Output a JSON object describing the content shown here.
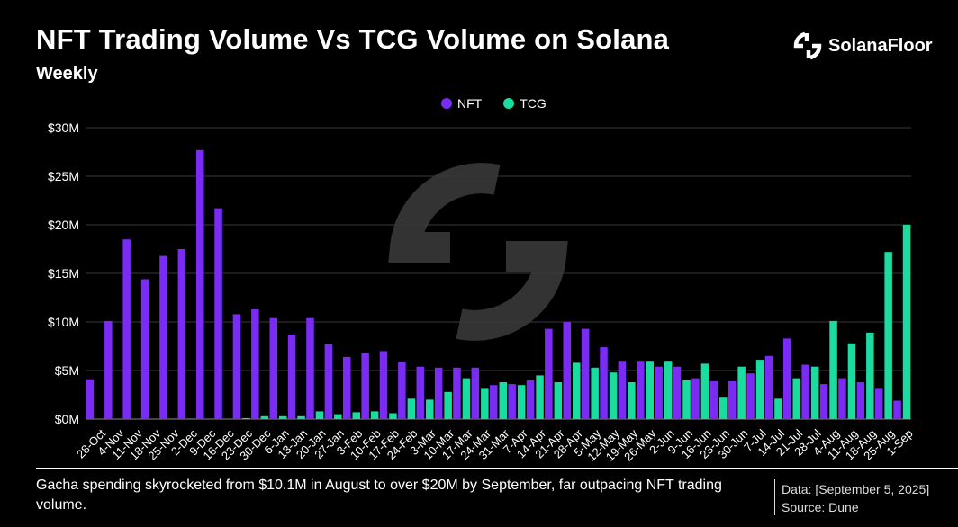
{
  "header": {
    "title": "NFT Trading Volume Vs TCG Volume on Solana",
    "subtitle": "Weekly"
  },
  "brand": {
    "name": "SolanaFloor",
    "icon": "solanafloor-logo-icon"
  },
  "colors": {
    "nft": "#7A2CF5",
    "tcg": "#1ADBA0",
    "background": "#000000",
    "grid": "#3A3A3A",
    "text": "#FFFFFF"
  },
  "chart_data": {
    "type": "bar",
    "title": "NFT Trading Volume Vs TCG Volume on Solana",
    "subtitle": "Weekly",
    "categories": [
      "28-Oct",
      "4-Nov",
      "11-Nov",
      "18-Nov",
      "25-Nov",
      "2-Dec",
      "9-Dec",
      "16-Dec",
      "23-Dec",
      "30-Dec",
      "6-Jan",
      "13-Jan",
      "20-Jan",
      "27-Jan",
      "3-Feb",
      "10-Feb",
      "17-Feb",
      "24-Feb",
      "3-Mar",
      "10-Mar",
      "17-Mar",
      "24-Mar",
      "31-Mar",
      "7-Apr",
      "14-Apr",
      "21-Apr",
      "28-Apr",
      "5-May",
      "12-May",
      "19-May",
      "26-May",
      "2-Jun",
      "9-Jun",
      "16-Jun",
      "23-Jun",
      "30-Jun",
      "7-Jul",
      "14-Jul",
      "21-Jul",
      "28-Jul",
      "4-Aug",
      "11-Aug",
      "18-Aug",
      "25-Aug",
      "1-Sep"
    ],
    "series": [
      {
        "name": "NFT",
        "color": "#7A2CF5",
        "values": [
          4.1,
          10.1,
          18.5,
          14.4,
          16.8,
          17.5,
          27.7,
          21.7,
          10.8,
          11.3,
          10.4,
          8.7,
          10.4,
          7.7,
          6.4,
          6.8,
          7.0,
          5.9,
          5.4,
          5.3,
          5.3,
          5.3,
          3.5,
          3.6,
          4.0,
          9.3,
          10.0,
          9.3,
          7.4,
          6.0,
          6.0,
          5.4,
          5.4,
          4.2,
          3.9,
          3.9,
          4.7,
          6.5,
          8.3,
          5.6,
          3.6,
          4.2,
          3.8,
          3.2,
          1.9
        ]
      },
      {
        "name": "TCG",
        "color": "#1ADBA0",
        "values": [
          0,
          0,
          0,
          0,
          0.05,
          0.05,
          0,
          0,
          0.1,
          0.3,
          0.3,
          0.3,
          0.8,
          0.5,
          0.7,
          0.8,
          0.6,
          2.1,
          2.0,
          2.8,
          4.2,
          3.2,
          3.8,
          3.5,
          4.5,
          3.8,
          5.8,
          5.3,
          4.8,
          3.8,
          6.0,
          6.0,
          4.0,
          5.7,
          2.2,
          5.4,
          6.1,
          2.1,
          4.2,
          5.4,
          10.1,
          7.8,
          8.9,
          17.2,
          20.0
        ]
      }
    ],
    "ylim": [
      0,
      30
    ],
    "yticks": [
      0,
      5,
      10,
      15,
      20,
      25,
      30
    ],
    "ytick_labels": [
      "$0M",
      "$5M",
      "$10M",
      "$15M",
      "$20M",
      "$25M",
      "$30M"
    ],
    "xlabel": "",
    "ylabel": "",
    "legend": {
      "placement": "top-center",
      "entries": [
        "NFT",
        "TCG"
      ]
    },
    "grid": true
  },
  "footer": {
    "caption": "Gacha spending skyrocketed from $10.1M in August to over $20M by September, far outpacing NFT trading volume.",
    "data_date": "Data: [September 5, 2025]",
    "source": "Source: Dune"
  }
}
